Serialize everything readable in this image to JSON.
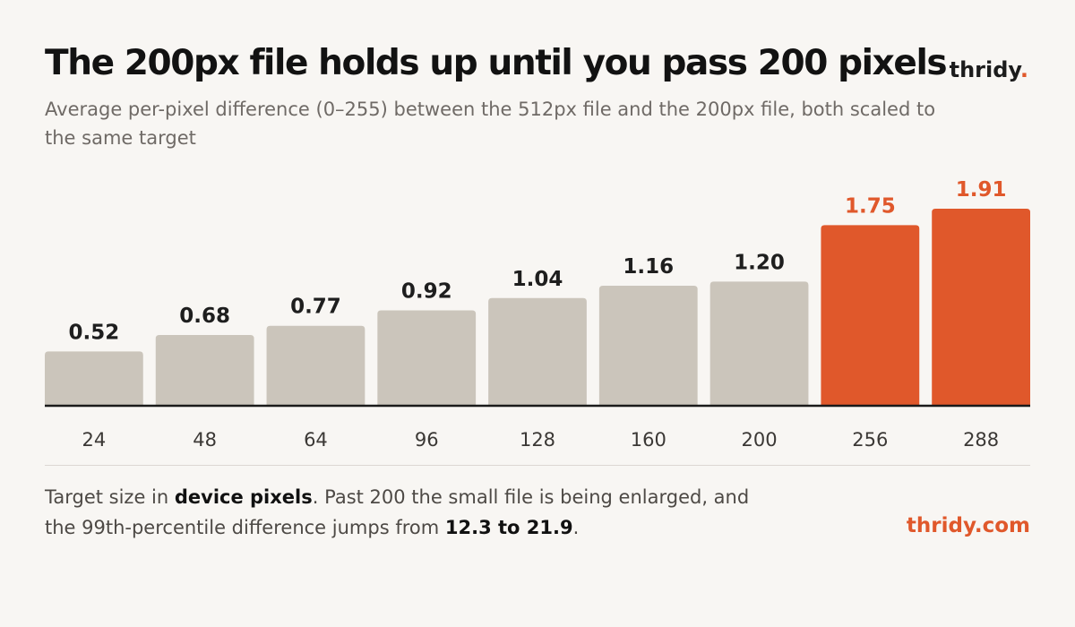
{
  "header": {
    "title": "The 200px file holds up until you pass 200 pixels",
    "subtitle": "Average per-pixel difference (0–255) between the 512px file and the 200px file, both scaled to the same target",
    "brand_name": "thridy",
    "brand_dot": "."
  },
  "chart_data": {
    "type": "bar",
    "categories": [
      "24",
      "48",
      "64",
      "96",
      "128",
      "160",
      "200",
      "256",
      "288"
    ],
    "values": [
      0.52,
      0.68,
      0.77,
      0.92,
      1.04,
      1.16,
      1.2,
      1.75,
      1.91
    ],
    "value_labels": [
      "0.52",
      "0.68",
      "0.77",
      "0.92",
      "1.04",
      "1.16",
      "1.20",
      "1.75",
      "1.91"
    ],
    "highlighted": [
      false,
      false,
      false,
      false,
      false,
      false,
      false,
      true,
      true
    ],
    "colors": {
      "normal_bar": "#cbc5bb",
      "highlight_bar": "#e0582b",
      "normal_label": "#1e1e1e",
      "highlight_label": "#e0582b",
      "axis": "#1a1a1a"
    },
    "grid": false
  },
  "footer": {
    "note_part1": "Target size in ",
    "note_bold1": "device pixels",
    "note_part2": ". Past 200 the small file is being enlarged, and the 99th-percentile difference jumps from ",
    "note_bold2": "12.3 to 21.9",
    "note_part3": ".",
    "site": "thridy.com"
  }
}
